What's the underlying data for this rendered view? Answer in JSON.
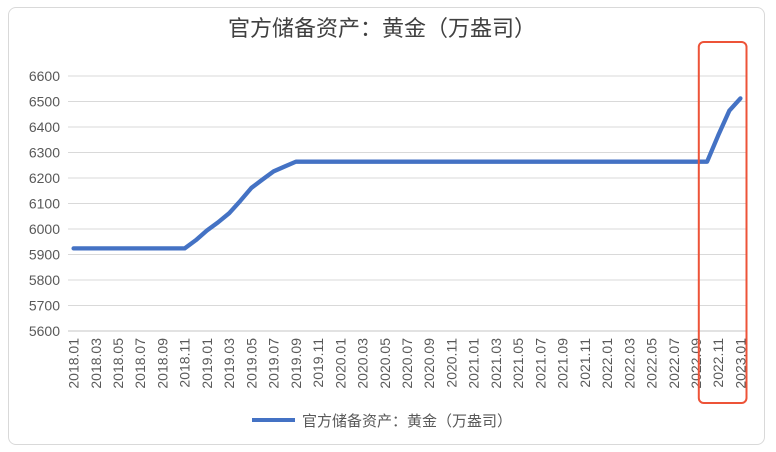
{
  "chart": {
    "title": "官方储备资产：黄金（万盎司）",
    "legend_label": "官方储备资产：黄金（万盎司）",
    "colors": {
      "line": "#4472c4",
      "gridline": "#d9d9d9",
      "axis_line": "#c6c6c6",
      "tick_label": "#595959",
      "title": "#404040",
      "highlight_box": "#ed5338",
      "frame_border": "#d9d9d9",
      "background": "#ffffff"
    }
  },
  "chart_data": {
    "type": "line",
    "title": "官方储备资产：黄金（万盎司）",
    "xlabel": "",
    "ylabel": "",
    "ylim": [
      5600,
      6600
    ],
    "y_ticks": [
      5600,
      5700,
      5800,
      5900,
      6000,
      6100,
      6200,
      6300,
      6400,
      6500,
      6600
    ],
    "grid": true,
    "legend": [
      "官方储备资产：黄金（万盎司）"
    ],
    "legend_position": "bottom",
    "x": [
      "2018.01",
      "2018.02",
      "2018.03",
      "2018.04",
      "2018.05",
      "2018.06",
      "2018.07",
      "2018.08",
      "2018.09",
      "2018.10",
      "2018.11",
      "2018.12",
      "2019.01",
      "2019.02",
      "2019.03",
      "2019.04",
      "2019.05",
      "2019.06",
      "2019.07",
      "2019.08",
      "2019.09",
      "2019.10",
      "2019.11",
      "2019.12",
      "2020.01",
      "2020.02",
      "2020.03",
      "2020.04",
      "2020.05",
      "2020.06",
      "2020.07",
      "2020.08",
      "2020.09",
      "2020.10",
      "2020.11",
      "2020.12",
      "2021.01",
      "2021.02",
      "2021.03",
      "2021.04",
      "2021.05",
      "2021.06",
      "2021.07",
      "2021.08",
      "2021.09",
      "2021.10",
      "2021.11",
      "2021.12",
      "2022.01",
      "2022.02",
      "2022.03",
      "2022.04",
      "2022.05",
      "2022.06",
      "2022.07",
      "2022.08",
      "2022.09",
      "2022.10",
      "2022.11",
      "2022.12",
      "2023.01"
    ],
    "values": [
      5924,
      5924,
      5924,
      5924,
      5924,
      5924,
      5924,
      5924,
      5924,
      5924,
      5924,
      5956,
      5994,
      6026,
      6062,
      6110,
      6161,
      6194,
      6226,
      6245,
      6264,
      6264,
      6264,
      6264,
      6264,
      6264,
      6264,
      6264,
      6264,
      6264,
      6264,
      6264,
      6264,
      6264,
      6264,
      6264,
      6264,
      6264,
      6264,
      6264,
      6264,
      6264,
      6264,
      6264,
      6264,
      6264,
      6264,
      6264,
      6264,
      6264,
      6264,
      6264,
      6264,
      6264,
      6264,
      6264,
      6264,
      6264,
      6367,
      6464,
      6512
    ],
    "x_tick_labels": [
      "2018.01",
      "2018.03",
      "2018.05",
      "2018.07",
      "2018.09",
      "2018.11",
      "2019.01",
      "2019.03",
      "2019.05",
      "2019.07",
      "2019.09",
      "2019.11",
      "2020.01",
      "2020.03",
      "2020.05",
      "2020.07",
      "2020.09",
      "2020.11",
      "2021.01",
      "2021.03",
      "2021.05",
      "2021.07",
      "2021.09",
      "2021.11",
      "2022.01",
      "2022.03",
      "2022.05",
      "2022.07",
      "2022.09",
      "2022.11",
      "2023.01"
    ],
    "annotation": {
      "type": "highlight-box",
      "covers_labels": [
        "2022.11",
        "2023.01"
      ],
      "color": "#ed5338"
    }
  }
}
